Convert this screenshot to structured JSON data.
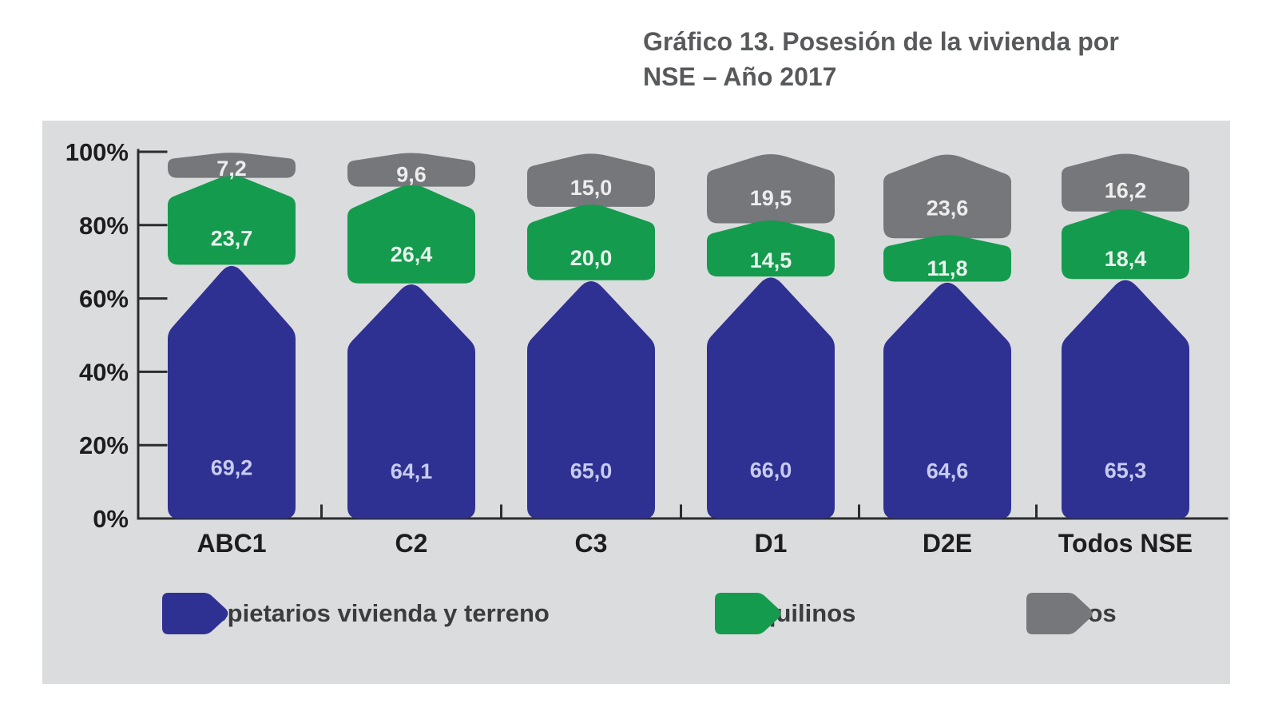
{
  "header": {
    "title_line1": "Gráfico 13. Posesión de la vivienda por",
    "title_line2": "NSE – Año 2017"
  },
  "chart_data": {
    "type": "bar",
    "subtype": "stacked-100pct-pictorial-pentagon-segments",
    "title": "Gráfico 13. Posesión de la vivienda por NSE – Año 2017",
    "categories": [
      "ABC1",
      "C2",
      "C3",
      "D1",
      "D2E",
      "Todos NSE"
    ],
    "series": [
      {
        "key": "propietarios",
        "name": "Propietarios vivienda y terreno",
        "color": "#2e3192",
        "label_color": "#c7ccee",
        "values": [
          69.2,
          64.1,
          65.0,
          66.0,
          64.6,
          65.3
        ],
        "labels": [
          "69,2",
          "64,1",
          "65,0",
          "66,0",
          "64,6",
          "65,3"
        ]
      },
      {
        "key": "inquilinos",
        "name": "Inquilinos",
        "color": "#149b4e",
        "label_color": "#eaf3ed",
        "values": [
          23.7,
          26.4,
          20.0,
          14.5,
          11.8,
          18.4
        ],
        "labels": [
          "23,7",
          "26,4",
          "20,0",
          "14,5",
          "11,8",
          "18,4"
        ]
      },
      {
        "key": "otros",
        "name": "Otros",
        "color": "#76777a",
        "label_color": "#ededef",
        "values": [
          7.2,
          9.6,
          15.0,
          19.5,
          23.6,
          16.2
        ],
        "labels": [
          "7,2",
          "9,6",
          "15,0",
          "19,5",
          "23,6",
          "16,2"
        ]
      }
    ],
    "y_axis": {
      "min": 0,
      "max": 100,
      "tick_step": 20,
      "tick_labels": [
        "0%",
        "20%",
        "40%",
        "60%",
        "80%",
        "100%"
      ]
    },
    "legend": {
      "position": "bottom",
      "entries": [
        "Propietarios vivienda y terreno",
        "Inquilinos",
        "Otros"
      ]
    },
    "grid": false
  },
  "colors": {
    "page_bg": "#ffffff",
    "panel_bg": "#dbdcde",
    "axis": "#2c2c2e",
    "title_text": "#58595b",
    "axis_label_text": "#1d1d1f",
    "legend_text": "#3b3c3e"
  }
}
